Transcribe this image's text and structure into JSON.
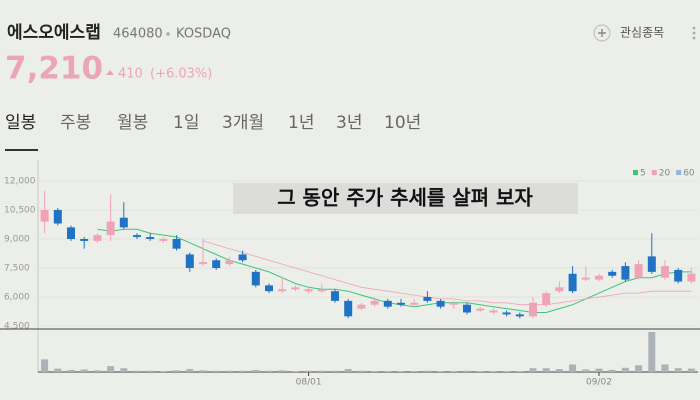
{
  "header": {
    "name": "에스오에스랩",
    "code": "464080",
    "market": "KOSDAQ",
    "watch": "관심종목",
    "price": "7,210",
    "change": "410",
    "change_pct": "(+6.03%)"
  },
  "tabs": [
    "일봉",
    "주봉",
    "월봉",
    "1일",
    "3개월",
    "1년",
    "3년",
    "10년"
  ],
  "overlay_caption": "그 동안 주가 추세를 살펴 보자",
  "chart_data": {
    "type": "candlestick",
    "categories": [
      null,
      null,
      null,
      null,
      null,
      null,
      null,
      null,
      null,
      null,
      null,
      null,
      null,
      null,
      null,
      null,
      null,
      null,
      null,
      null,
      "08/01",
      null,
      null,
      null,
      null,
      null,
      null,
      null,
      null,
      null,
      null,
      null,
      null,
      null,
      null,
      null,
      null,
      null,
      null,
      null,
      null,
      null,
      "09/02",
      null,
      null,
      null,
      null,
      null,
      null,
      null
    ],
    "open": [
      9900,
      10500,
      9600,
      9000,
      8900,
      9200,
      10100,
      9200,
      9100,
      8900,
      9000,
      8200,
      7700,
      7900,
      7700,
      8200,
      7300,
      6600,
      6300,
      6400,
      6300,
      6300,
      6300,
      5800,
      5400,
      5600,
      5800,
      5700,
      5600,
      6000,
      5800,
      5600,
      5600,
      5300,
      5200,
      5200,
      5100,
      5000,
      5600,
      6300,
      7200,
      6900,
      6900,
      7300,
      7600,
      7000,
      8100,
      7000,
      7400,
      6800
    ],
    "high": [
      11500,
      10600,
      9700,
      9100,
      9300,
      11300,
      10900,
      9300,
      9300,
      9100,
      9200,
      8300,
      9000,
      8000,
      8100,
      8400,
      7400,
      6700,
      7000,
      6600,
      6500,
      6700,
      6400,
      5900,
      5700,
      5900,
      5900,
      5900,
      5900,
      6300,
      5900,
      5800,
      5700,
      5500,
      5400,
      5300,
      5200,
      6000,
      6300,
      6800,
      7600,
      7600,
      7200,
      7400,
      7800,
      7900,
      9300,
      7900,
      7500,
      7500
    ],
    "low": [
      9300,
      9700,
      8900,
      8500,
      8800,
      8900,
      9500,
      9000,
      8900,
      8800,
      8400,
      7300,
      7600,
      7400,
      7600,
      7800,
      6500,
      6200,
      6200,
      6300,
      6200,
      6200,
      5700,
      4900,
      5300,
      5500,
      5400,
      5500,
      5500,
      5700,
      5400,
      5400,
      5100,
      5200,
      5100,
      5000,
      4900,
      4900,
      5500,
      6200,
      6200,
      6800,
      6800,
      7000,
      6800,
      6900,
      7200,
      6900,
      6700,
      6700
    ],
    "close": [
      10500,
      9800,
      9000,
      8900,
      9200,
      9900,
      9600,
      9100,
      9000,
      9000,
      8500,
      7500,
      7800,
      7500,
      7900,
      7900,
      6600,
      6300,
      6400,
      6500,
      6400,
      6400,
      5800,
      5000,
      5600,
      5800,
      5500,
      5600,
      5700,
      5800,
      5500,
      5700,
      5200,
      5400,
      5300,
      5100,
      5000,
      5700,
      6200,
      6500,
      6300,
      7000,
      7100,
      7100,
      6900,
      7700,
      7300,
      7600,
      6800,
      7210
    ],
    "volume": [
      30,
      8,
      5,
      6,
      4,
      14,
      9,
      3,
      3,
      2,
      4,
      7,
      4,
      3,
      3,
      3,
      5,
      3,
      4,
      2,
      3,
      3,
      3,
      7,
      3,
      2,
      2,
      2,
      2,
      3,
      2,
      2,
      3,
      2,
      2,
      2,
      2,
      9,
      9,
      7,
      18,
      6,
      8,
      5,
      10,
      16,
      95,
      18,
      9,
      8
    ],
    "up_color": "#f0a3b5",
    "down_color": "#1f72c4",
    "volume_color": "#adb1b8",
    "series": [
      {
        "name": "5",
        "color": "#3cc47a",
        "values": [
          null,
          null,
          null,
          null,
          9500,
          9400,
          9500,
          9500,
          9300,
          9200,
          9100,
          8800,
          8500,
          8200,
          7900,
          7700,
          7500,
          7300,
          7000,
          6700,
          6500,
          6400,
          6400,
          6300,
          6100,
          5900,
          5700,
          5600,
          5500,
          5600,
          5700,
          5700,
          5700,
          5600,
          5500,
          5400,
          5300,
          5200,
          5200,
          5400,
          5600,
          5900,
          6200,
          6500,
          6800,
          7000,
          7000,
          7200,
          7300,
          7300
        ]
      },
      {
        "name": "20",
        "color": "#f0a3b5",
        "values": [
          null,
          null,
          null,
          null,
          null,
          null,
          null,
          null,
          null,
          null,
          null,
          null,
          8900,
          8700,
          8500,
          8300,
          8100,
          7900,
          7700,
          7500,
          7300,
          7100,
          6900,
          6700,
          6500,
          6400,
          6300,
          6200,
          6100,
          6000,
          5900,
          5900,
          5800,
          5800,
          5700,
          5700,
          5600,
          5600,
          5600,
          5700,
          5800,
          5900,
          6000,
          6100,
          6200,
          6200,
          6300,
          6300,
          6300,
          6300
        ]
      },
      {
        "name": "60",
        "color": "#8fb8e0",
        "values": [
          null,
          null,
          null,
          null,
          null,
          null,
          null,
          null,
          null,
          null,
          null,
          null,
          null,
          null,
          null,
          null,
          null,
          null,
          null,
          null,
          null,
          null,
          null,
          null,
          null,
          null,
          null,
          null,
          null,
          null,
          null,
          null,
          null,
          null,
          null,
          null,
          null,
          null,
          null,
          null,
          null,
          null,
          null,
          null,
          null,
          null,
          null,
          null,
          null,
          null
        ]
      }
    ],
    "ylim": [
      4500,
      12800
    ],
    "yticks": [
      {
        "value": 4500,
        "label": "4,500"
      },
      {
        "value": 6000,
        "label": "6,000"
      },
      {
        "value": 7500,
        "label": "7,500"
      },
      {
        "value": 9000,
        "label": "9,000"
      },
      {
        "value": 10500,
        "label": "10,500"
      },
      {
        "value": 12000,
        "label": "12,000"
      }
    ],
    "grid": true
  }
}
